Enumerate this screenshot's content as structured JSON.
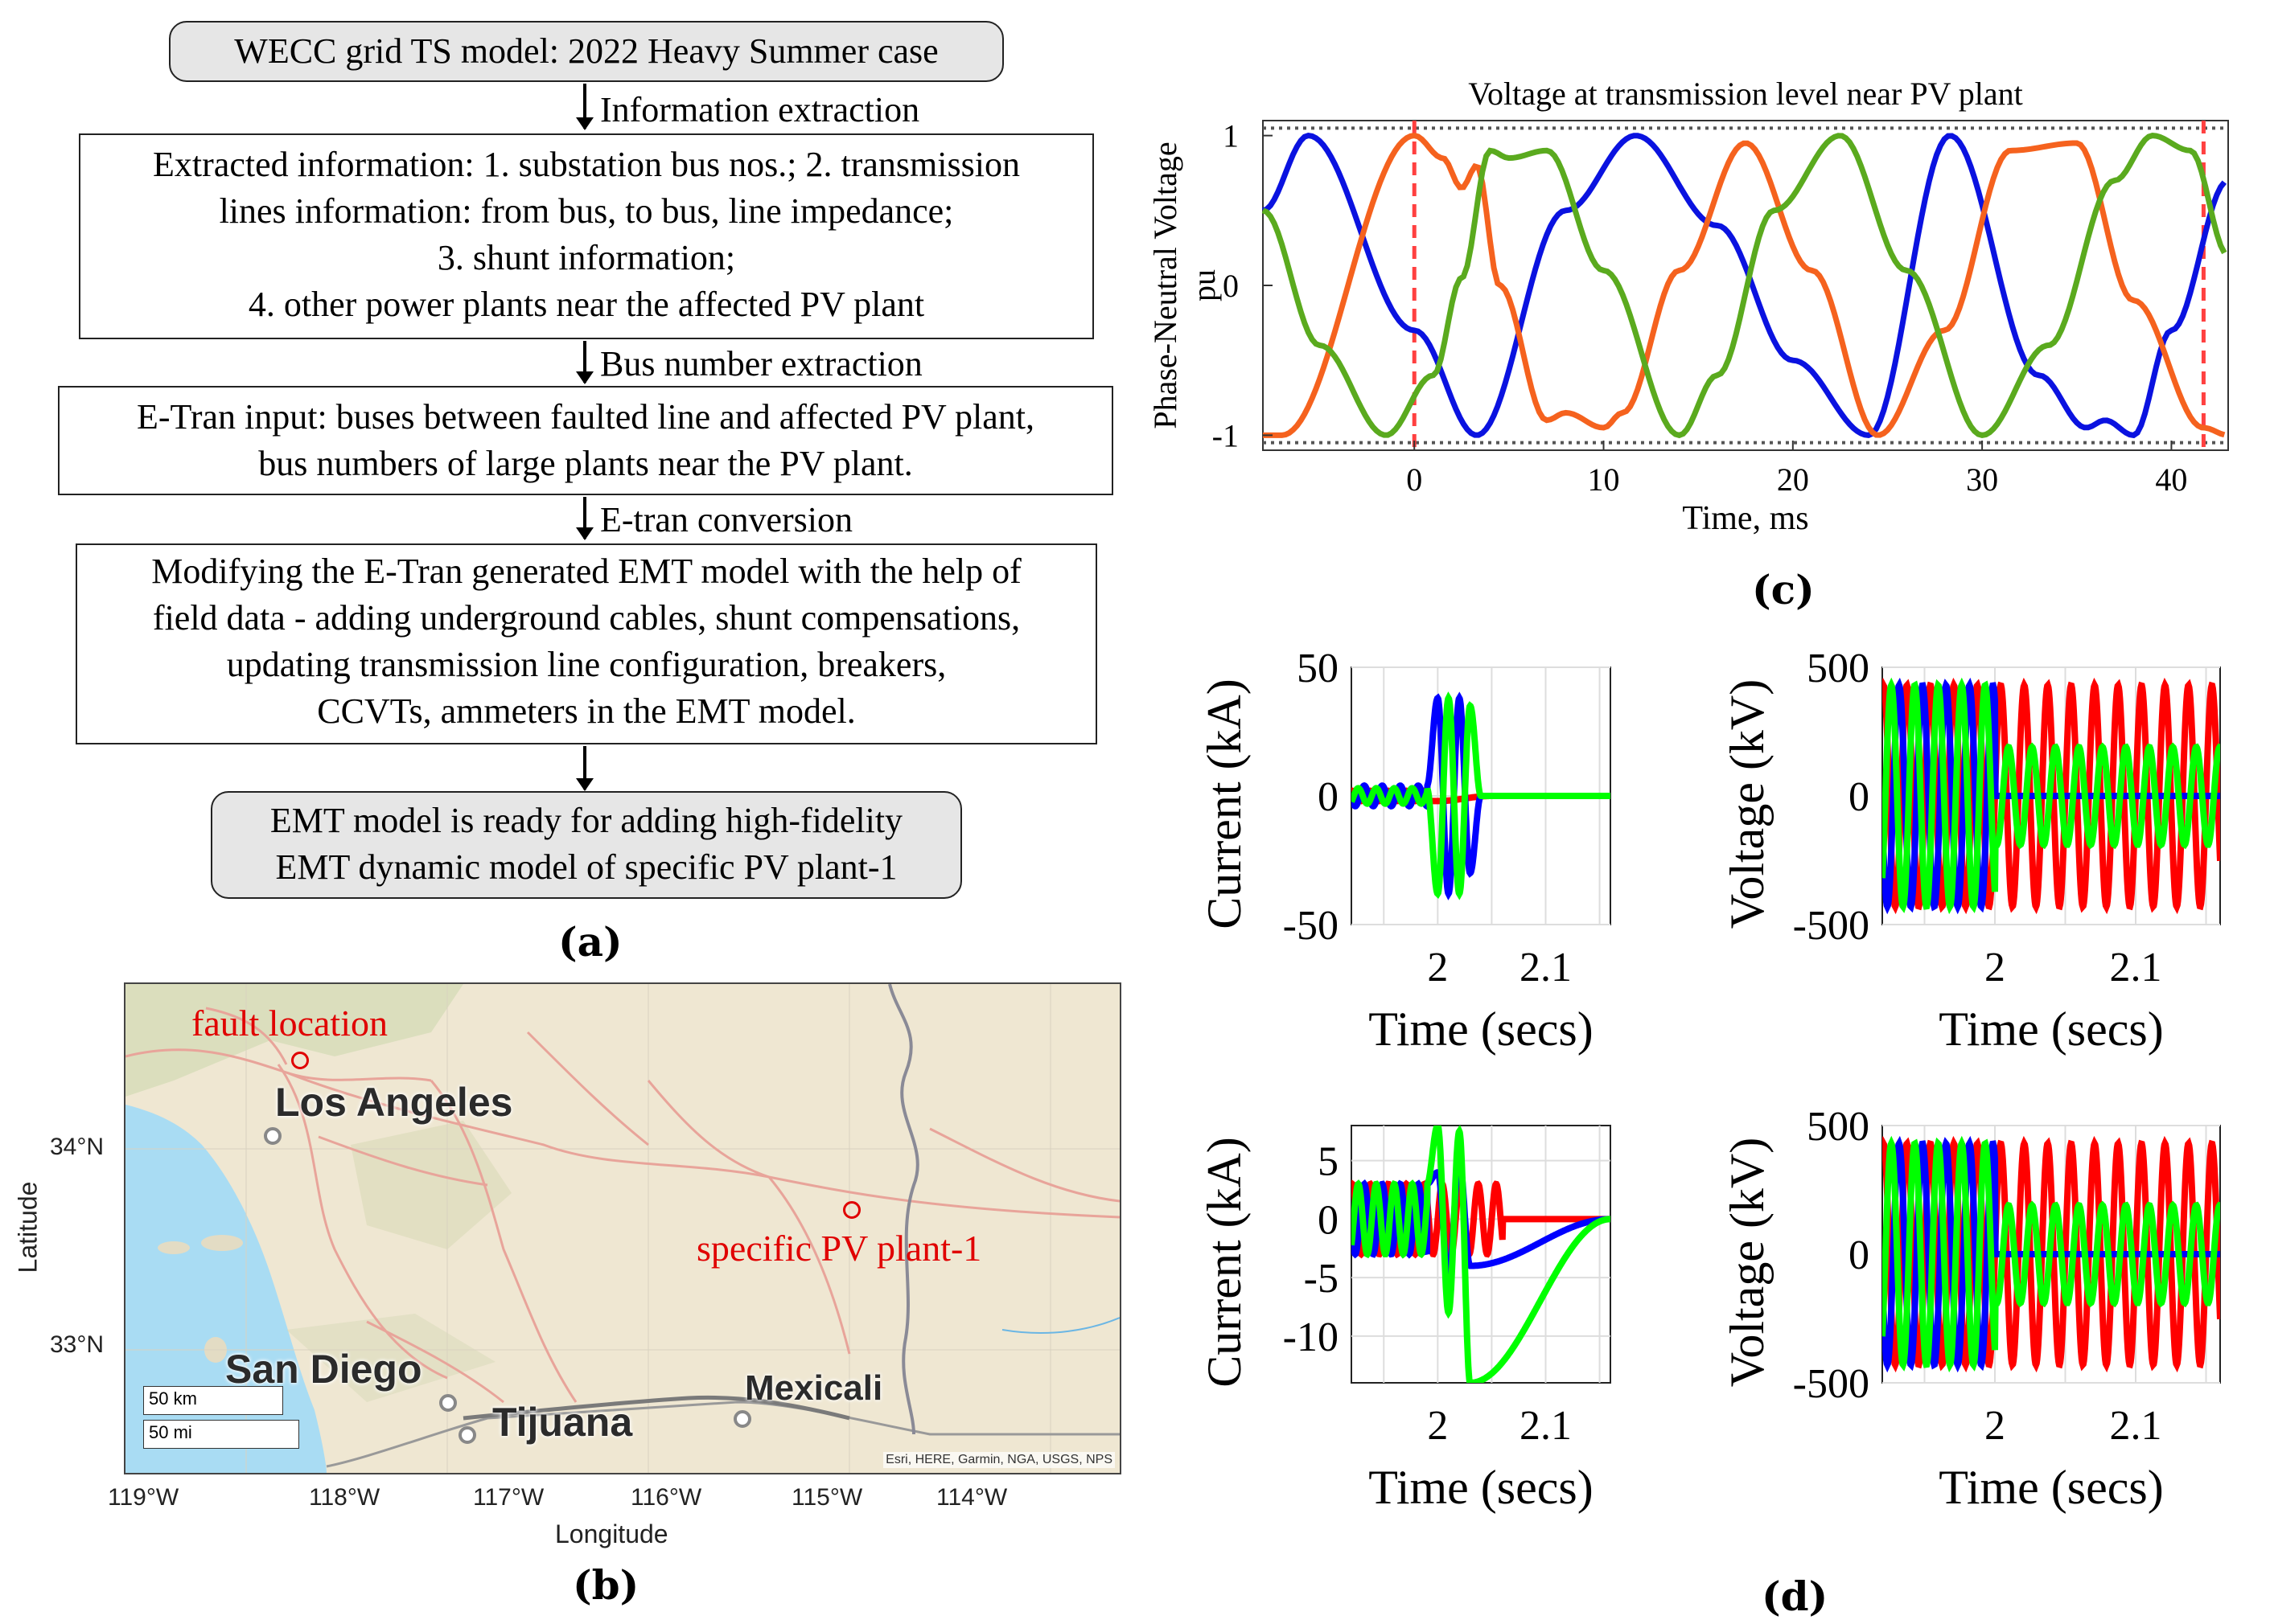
{
  "panel_a": {
    "label": "(a)",
    "box1": "WECC grid TS model: 2022 Heavy Summer case",
    "arrow1": "Information extraction",
    "box2": [
      "Extracted information: 1. substation bus nos.; 2. transmission",
      "lines information: from bus, to bus, line impedance;",
      "3. shunt information;",
      "4. other power plants near the affected PV plant"
    ],
    "arrow2": "Bus number extraction",
    "box3": [
      "E-Tran input: buses between faulted line and affected PV plant,",
      "bus numbers of large plants near the PV plant."
    ],
    "arrow3": "E-tran conversion",
    "box4": [
      "Modifying the E-Tran generated EMT model with the help of",
      "field data - adding underground cables, shunt compensations,",
      "updating transmission line configuration, breakers,",
      "CCVTs, ammeters in the EMT model."
    ],
    "box5": [
      "EMT model is ready for adding high-fidelity",
      "EMT dynamic model of specific PV plant-1"
    ]
  },
  "panel_b": {
    "label": "(b)",
    "fault_location": "fault location",
    "pv_plant": "specific PV plant-1",
    "cities": {
      "los_angeles": "Los Angeles",
      "san_diego": "San Diego",
      "tijuana": "Tijuana",
      "mexicali": "Mexicali"
    },
    "scale_km": "50 km",
    "scale_mi": "50 mi",
    "attribution": "Esri, HERE, Garmin, NGA, USGS, NPS",
    "ylabel": "Latitude",
    "xlabel": "Longitude",
    "lat_ticks": [
      "34°N",
      "33°N"
    ],
    "lon_ticks": [
      "119°W",
      "118°W",
      "117°W",
      "116°W",
      "115°W",
      "114°W"
    ],
    "colors": {
      "land": "#efe7d2",
      "water": "#a9dcf3",
      "roads": "#e8a49a",
      "annotation": "#e00000"
    }
  },
  "panel_c": {
    "label": "(c)"
  },
  "panel_d": {
    "label": "(d)"
  },
  "chart_data": [
    {
      "type": "line",
      "title": "Voltage at transmission level near PV plant",
      "xlabel": "Time, ms",
      "ylabel": "Phase-Neutral Voltage pu",
      "xlim": [
        -8,
        43
      ],
      "ylim": [
        -1.1,
        1.1
      ],
      "xticks": [
        0,
        10,
        20,
        30,
        40
      ],
      "yticks": [
        -1,
        0,
        1
      ],
      "ytick_labels": [
        "-1",
        "0",
        "1"
      ],
      "grid": false,
      "reference_lines": {
        "horizontal": [
          1.05,
          -1.05
        ],
        "vertical_ms": [
          0,
          41.7
        ]
      },
      "series": [
        {
          "color": "#0a12e0",
          "x": [
            -8,
            -5.6,
            0,
            3.3,
            8,
            11.7,
            16,
            20,
            24,
            28.3,
            33,
            35.5,
            36.5,
            38,
            40,
            43
          ],
          "y": [
            0.5,
            1.0,
            -0.3,
            -1.0,
            0.5,
            1.0,
            0.4,
            -0.5,
            -1.0,
            1.0,
            -0.6,
            -0.95,
            -0.9,
            -1.0,
            -0.3,
            0.7
          ]
        },
        {
          "color": "#f5621e",
          "x": [
            -8,
            -7,
            0,
            1.5,
            2.5,
            3.3,
            4.5,
            7,
            8,
            10,
            11,
            14,
            17.5,
            21,
            24.5,
            28,
            31.5,
            35,
            38,
            41.7,
            43
          ],
          "y": [
            -1.0,
            -1.0,
            1.0,
            0.85,
            0.65,
            0.8,
            0.0,
            -0.9,
            -0.85,
            -0.95,
            -0.85,
            0.1,
            0.95,
            0.1,
            -1.0,
            -0.3,
            0.9,
            0.95,
            -0.1,
            -0.95,
            -1.0
          ]
        },
        {
          "color": "#5aaa1e",
          "x": [
            -8,
            -5,
            -1.5,
            1,
            2.5,
            4,
            5,
            7,
            10,
            14,
            16,
            19,
            22.5,
            26,
            30,
            33.5,
            37,
            39,
            41,
            43
          ],
          "y": [
            0.5,
            -0.4,
            -1.0,
            -0.6,
            0.05,
            0.9,
            0.85,
            0.9,
            0.1,
            -1.0,
            -0.6,
            0.5,
            1.0,
            0.1,
            -1.0,
            -0.4,
            0.7,
            1.0,
            0.9,
            0.2
          ]
        }
      ]
    },
    {
      "type": "line",
      "xlabel": "Time (secs)",
      "ylabel": "Current (kA)",
      "xlim": [
        1.92,
        2.16
      ],
      "ylim": [
        -50,
        50
      ],
      "xticks": [
        2,
        2.1
      ],
      "yticks": [
        50,
        0,
        -50
      ],
      "grid": true,
      "series": [
        {
          "color": "#ff0000",
          "x": [
            1.92,
            2.0,
            2.05,
            2.16
          ],
          "y": [
            -2,
            -2,
            0,
            0
          ]
        },
        {
          "color": "#0000ff",
          "x": [
            1.92,
            1.99,
            2.0,
            2.01,
            2.02,
            2.03,
            2.04,
            2.16
          ],
          "y": [
            4,
            4,
            38,
            -38,
            38,
            -30,
            0,
            0
          ]
        },
        {
          "color": "#00ff00",
          "x": [
            1.92,
            1.99,
            2.0,
            2.01,
            2.02,
            2.03,
            2.04,
            2.16
          ],
          "y": [
            3,
            3,
            -38,
            38,
            -38,
            35,
            0,
            0
          ]
        }
      ]
    },
    {
      "type": "line",
      "xlabel": "Time (secs)",
      "ylabel": "Voltage (kV)",
      "xlim": [
        1.92,
        2.16
      ],
      "ylim": [
        -500,
        500
      ],
      "xticks": [
        2,
        2.1
      ],
      "yticks": [
        500,
        0,
        -500
      ],
      "grid": true,
      "series": [
        {
          "color": "#ff0000",
          "x": [
            1.92,
            2.16
          ],
          "y_amplitude_before_2s": 430,
          "y_amplitude_after_2s": 430
        },
        {
          "color": "#0000ff",
          "x": [
            1.92,
            2.16
          ],
          "y_amplitude_before_2s": 430,
          "y_amplitude_after_2s": 0
        },
        {
          "color": "#00ff00",
          "x": [
            1.92,
            2.16
          ],
          "y_amplitude_before_2s": 430,
          "y_amplitude_after_2s": 190
        }
      ]
    },
    {
      "type": "line",
      "xlabel": "Time (secs)",
      "ylabel": "Current (kA)",
      "xlim": [
        1.92,
        2.16
      ],
      "ylim": [
        -14,
        8
      ],
      "xticks": [
        2,
        2.1
      ],
      "yticks": [
        5,
        0,
        -5,
        -10
      ],
      "grid": true,
      "series": [
        {
          "color": "#ff0000",
          "x": [
            1.92,
            2.0,
            2.06,
            2.16
          ],
          "y_amplitude": 3
        },
        {
          "color": "#0000ff",
          "x": [
            1.92,
            1.99,
            2.0,
            2.01,
            2.02,
            2.03,
            2.16
          ],
          "y": [
            3,
            3,
            4,
            -5,
            5,
            -4,
            0
          ]
        },
        {
          "color": "#00ff00",
          "x": [
            1.92,
            1.99,
            2.0,
            2.01,
            2.02,
            2.03,
            2.16
          ],
          "y": [
            3,
            3,
            8,
            -8,
            7.5,
            -14,
            0
          ]
        }
      ]
    },
    {
      "type": "line",
      "xlabel": "Time (secs)",
      "ylabel": "Voltage (kV)",
      "xlim": [
        1.92,
        2.16
      ],
      "ylim": [
        -500,
        500
      ],
      "xticks": [
        2,
        2.1
      ],
      "yticks": [
        500,
        0,
        -500
      ],
      "grid": true,
      "series": [
        {
          "color": "#ff0000",
          "y_amplitude_before_2s": 430,
          "y_amplitude_after_2s": 430
        },
        {
          "color": "#0000ff",
          "y_amplitude_before_2s": 430,
          "y_amplitude_after_2s": 0
        },
        {
          "color": "#00ff00",
          "y_amplitude_before_2s": 430,
          "y_amplitude_after_2s": 190
        }
      ]
    }
  ]
}
